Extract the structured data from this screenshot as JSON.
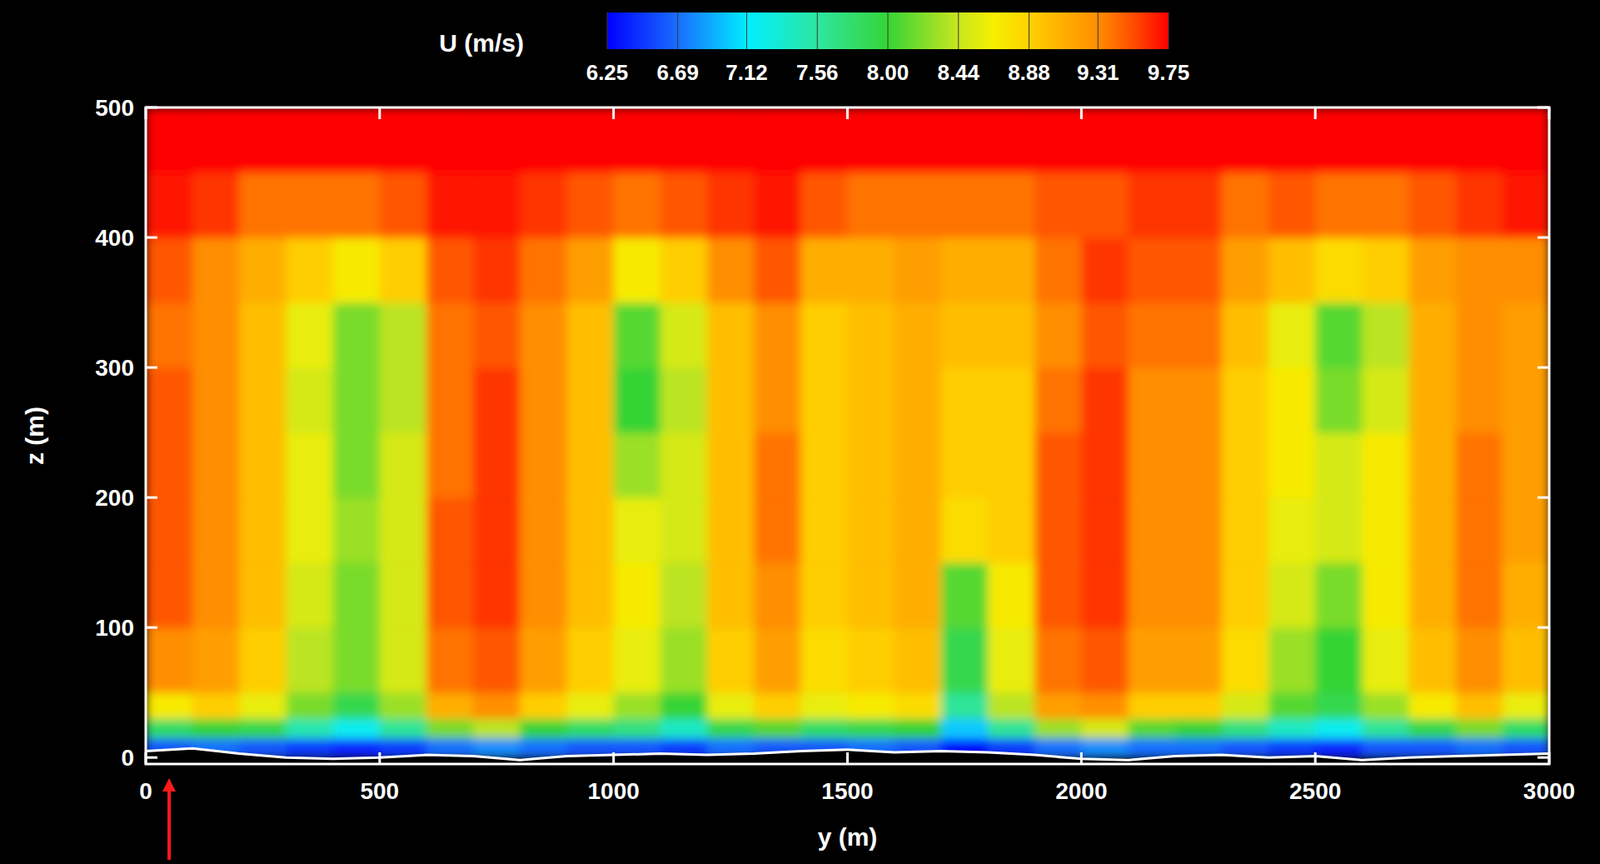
{
  "chart_data": {
    "type": "heatmap",
    "x_label": "y (m)",
    "y_label": "z (m)",
    "xlim": [
      0,
      3000
    ],
    "ylim": [
      -5,
      500
    ],
    "xticks": [
      0,
      500,
      1000,
      1500,
      2000,
      2500,
      3000
    ],
    "yticks": [
      0,
      100,
      200,
      300,
      400,
      500
    ],
    "x_edges": [
      0,
      100,
      200,
      300,
      400,
      500,
      600,
      700,
      800,
      900,
      1000,
      1100,
      1200,
      1300,
      1400,
      1500,
      1600,
      1700,
      1800,
      1900,
      2000,
      2100,
      2200,
      2300,
      2400,
      2500,
      2600,
      2700,
      2800,
      2900,
      3000
    ],
    "y_edges": [
      0,
      15,
      30,
      50,
      100,
      150,
      200,
      250,
      300,
      350,
      400,
      450,
      500
    ],
    "cells": [
      [
        6.6,
        6.7,
        6.6,
        6.5,
        6.4,
        6.5,
        6.7,
        6.8,
        6.7,
        6.6,
        6.6,
        6.5,
        6.7,
        6.6,
        6.6,
        6.7,
        6.6,
        6.3,
        6.5,
        6.7,
        6.8,
        6.7,
        6.7,
        6.6,
        6.5,
        6.4,
        6.6,
        6.6,
        6.7,
        6.6
      ],
      [
        7.8,
        8.0,
        7.9,
        7.5,
        7.2,
        7.6,
        8.2,
        8.4,
        8.0,
        7.8,
        7.7,
        7.4,
        7.9,
        8.1,
        7.8,
        7.9,
        8.0,
        7.0,
        7.6,
        8.3,
        8.5,
        8.1,
        8.0,
        7.7,
        7.4,
        7.2,
        7.6,
        7.9,
        8.2,
        7.8
      ],
      [
        8.7,
        8.9,
        8.6,
        8.2,
        7.9,
        8.3,
        9.1,
        9.3,
        8.9,
        8.6,
        8.3,
        8.0,
        8.6,
        8.9,
        8.6,
        8.7,
        8.8,
        7.6,
        8.4,
        9.2,
        9.3,
        8.9,
        8.9,
        8.5,
        8.1,
        7.9,
        8.3,
        8.7,
        9.0,
        8.6
      ],
      [
        9.3,
        9.2,
        8.9,
        8.4,
        8.2,
        8.5,
        9.4,
        9.5,
        9.2,
        8.9,
        8.6,
        8.3,
        8.9,
        9.2,
        8.8,
        8.9,
        9.0,
        7.9,
        8.6,
        9.4,
        9.5,
        9.2,
        9.2,
        8.8,
        8.3,
        8.0,
        8.6,
        9.0,
        9.3,
        9.0
      ],
      [
        9.5,
        9.3,
        9.0,
        8.5,
        8.2,
        8.5,
        9.5,
        9.6,
        9.3,
        9.0,
        8.7,
        8.4,
        9.0,
        9.3,
        8.9,
        9.0,
        9.1,
        8.1,
        8.7,
        9.5,
        9.6,
        9.3,
        9.3,
        8.9,
        8.5,
        8.2,
        8.7,
        9.1,
        9.4,
        9.1
      ],
      [
        9.5,
        9.3,
        9.0,
        8.6,
        8.3,
        8.5,
        9.5,
        9.6,
        9.3,
        9.0,
        8.6,
        8.5,
        9.0,
        9.4,
        8.9,
        9.0,
        9.1,
        8.8,
        8.9,
        9.5,
        9.6,
        9.3,
        9.3,
        8.9,
        8.6,
        8.5,
        8.7,
        9.1,
        9.4,
        9.2
      ],
      [
        9.5,
        9.3,
        9.0,
        8.6,
        8.2,
        8.5,
        9.4,
        9.6,
        9.3,
        9.0,
        8.3,
        8.5,
        9.0,
        9.4,
        8.9,
        9.0,
        9.1,
        8.9,
        8.9,
        9.5,
        9.6,
        9.3,
        9.3,
        8.9,
        8.7,
        8.5,
        8.7,
        9.1,
        9.4,
        9.2
      ],
      [
        9.5,
        9.3,
        9.0,
        8.5,
        8.2,
        8.4,
        9.4,
        9.6,
        9.3,
        9.0,
        8.0,
        8.4,
        9.0,
        9.3,
        8.9,
        9.0,
        9.1,
        8.9,
        8.9,
        9.4,
        9.6,
        9.3,
        9.3,
        8.9,
        8.7,
        8.2,
        8.5,
        9.1,
        9.3,
        9.2
      ],
      [
        9.4,
        9.3,
        9.0,
        8.6,
        8.2,
        8.4,
        9.4,
        9.5,
        9.3,
        9.0,
        8.1,
        8.5,
        9.0,
        9.3,
        8.9,
        9.0,
        9.1,
        9.0,
        9.0,
        9.3,
        9.5,
        9.4,
        9.4,
        9.0,
        8.6,
        8.1,
        8.4,
        9.1,
        9.3,
        9.2
      ],
      [
        9.5,
        9.3,
        9.1,
        8.9,
        8.7,
        8.9,
        9.5,
        9.6,
        9.4,
        9.2,
        8.7,
        8.9,
        9.3,
        9.5,
        9.1,
        9.1,
        9.2,
        9.1,
        9.1,
        9.4,
        9.6,
        9.5,
        9.5,
        9.2,
        9.0,
        8.8,
        8.9,
        9.2,
        9.3,
        9.3
      ],
      [
        9.7,
        9.6,
        9.4,
        9.4,
        9.4,
        9.5,
        9.7,
        9.7,
        9.6,
        9.5,
        9.4,
        9.5,
        9.6,
        9.7,
        9.5,
        9.4,
        9.4,
        9.4,
        9.4,
        9.5,
        9.5,
        9.6,
        9.6,
        9.4,
        9.5,
        9.4,
        9.4,
        9.5,
        9.6,
        9.7
      ],
      [
        9.75,
        9.75,
        9.75,
        9.75,
        9.75,
        9.75,
        9.75,
        9.75,
        9.75,
        9.75,
        9.75,
        9.75,
        9.75,
        9.75,
        9.75,
        9.75,
        9.75,
        9.75,
        9.75,
        9.75,
        9.75,
        9.75,
        9.75,
        9.75,
        9.75,
        9.75,
        9.75,
        9.75,
        9.75,
        9.75
      ]
    ],
    "colorbar": {
      "title": "U (m/s)",
      "range": [
        6.25,
        9.75
      ],
      "ticks": [
        6.25,
        6.69,
        7.12,
        7.56,
        {
          "value": 8,
          "label": "8.00"
        },
        8.44,
        8.88,
        9.31,
        9.75
      ]
    },
    "terrain": {
      "x": [
        0,
        100,
        200,
        300,
        400,
        500,
        600,
        700,
        800,
        900,
        1000,
        1100,
        1200,
        1300,
        1400,
        1500,
        1600,
        1700,
        1800,
        1900,
        2000,
        2100,
        2200,
        2300,
        2400,
        2500,
        2600,
        2700,
        2800,
        2900,
        3000
      ],
      "values": [
        5,
        7,
        3,
        0,
        -1,
        0,
        2,
        1,
        -2,
        1,
        2,
        3,
        2,
        3,
        5,
        6,
        4,
        5,
        4,
        2,
        -1,
        -2,
        1,
        2,
        0,
        1,
        -2,
        0,
        1,
        2,
        3
      ]
    },
    "arrow": {
      "x": 50
    }
  }
}
